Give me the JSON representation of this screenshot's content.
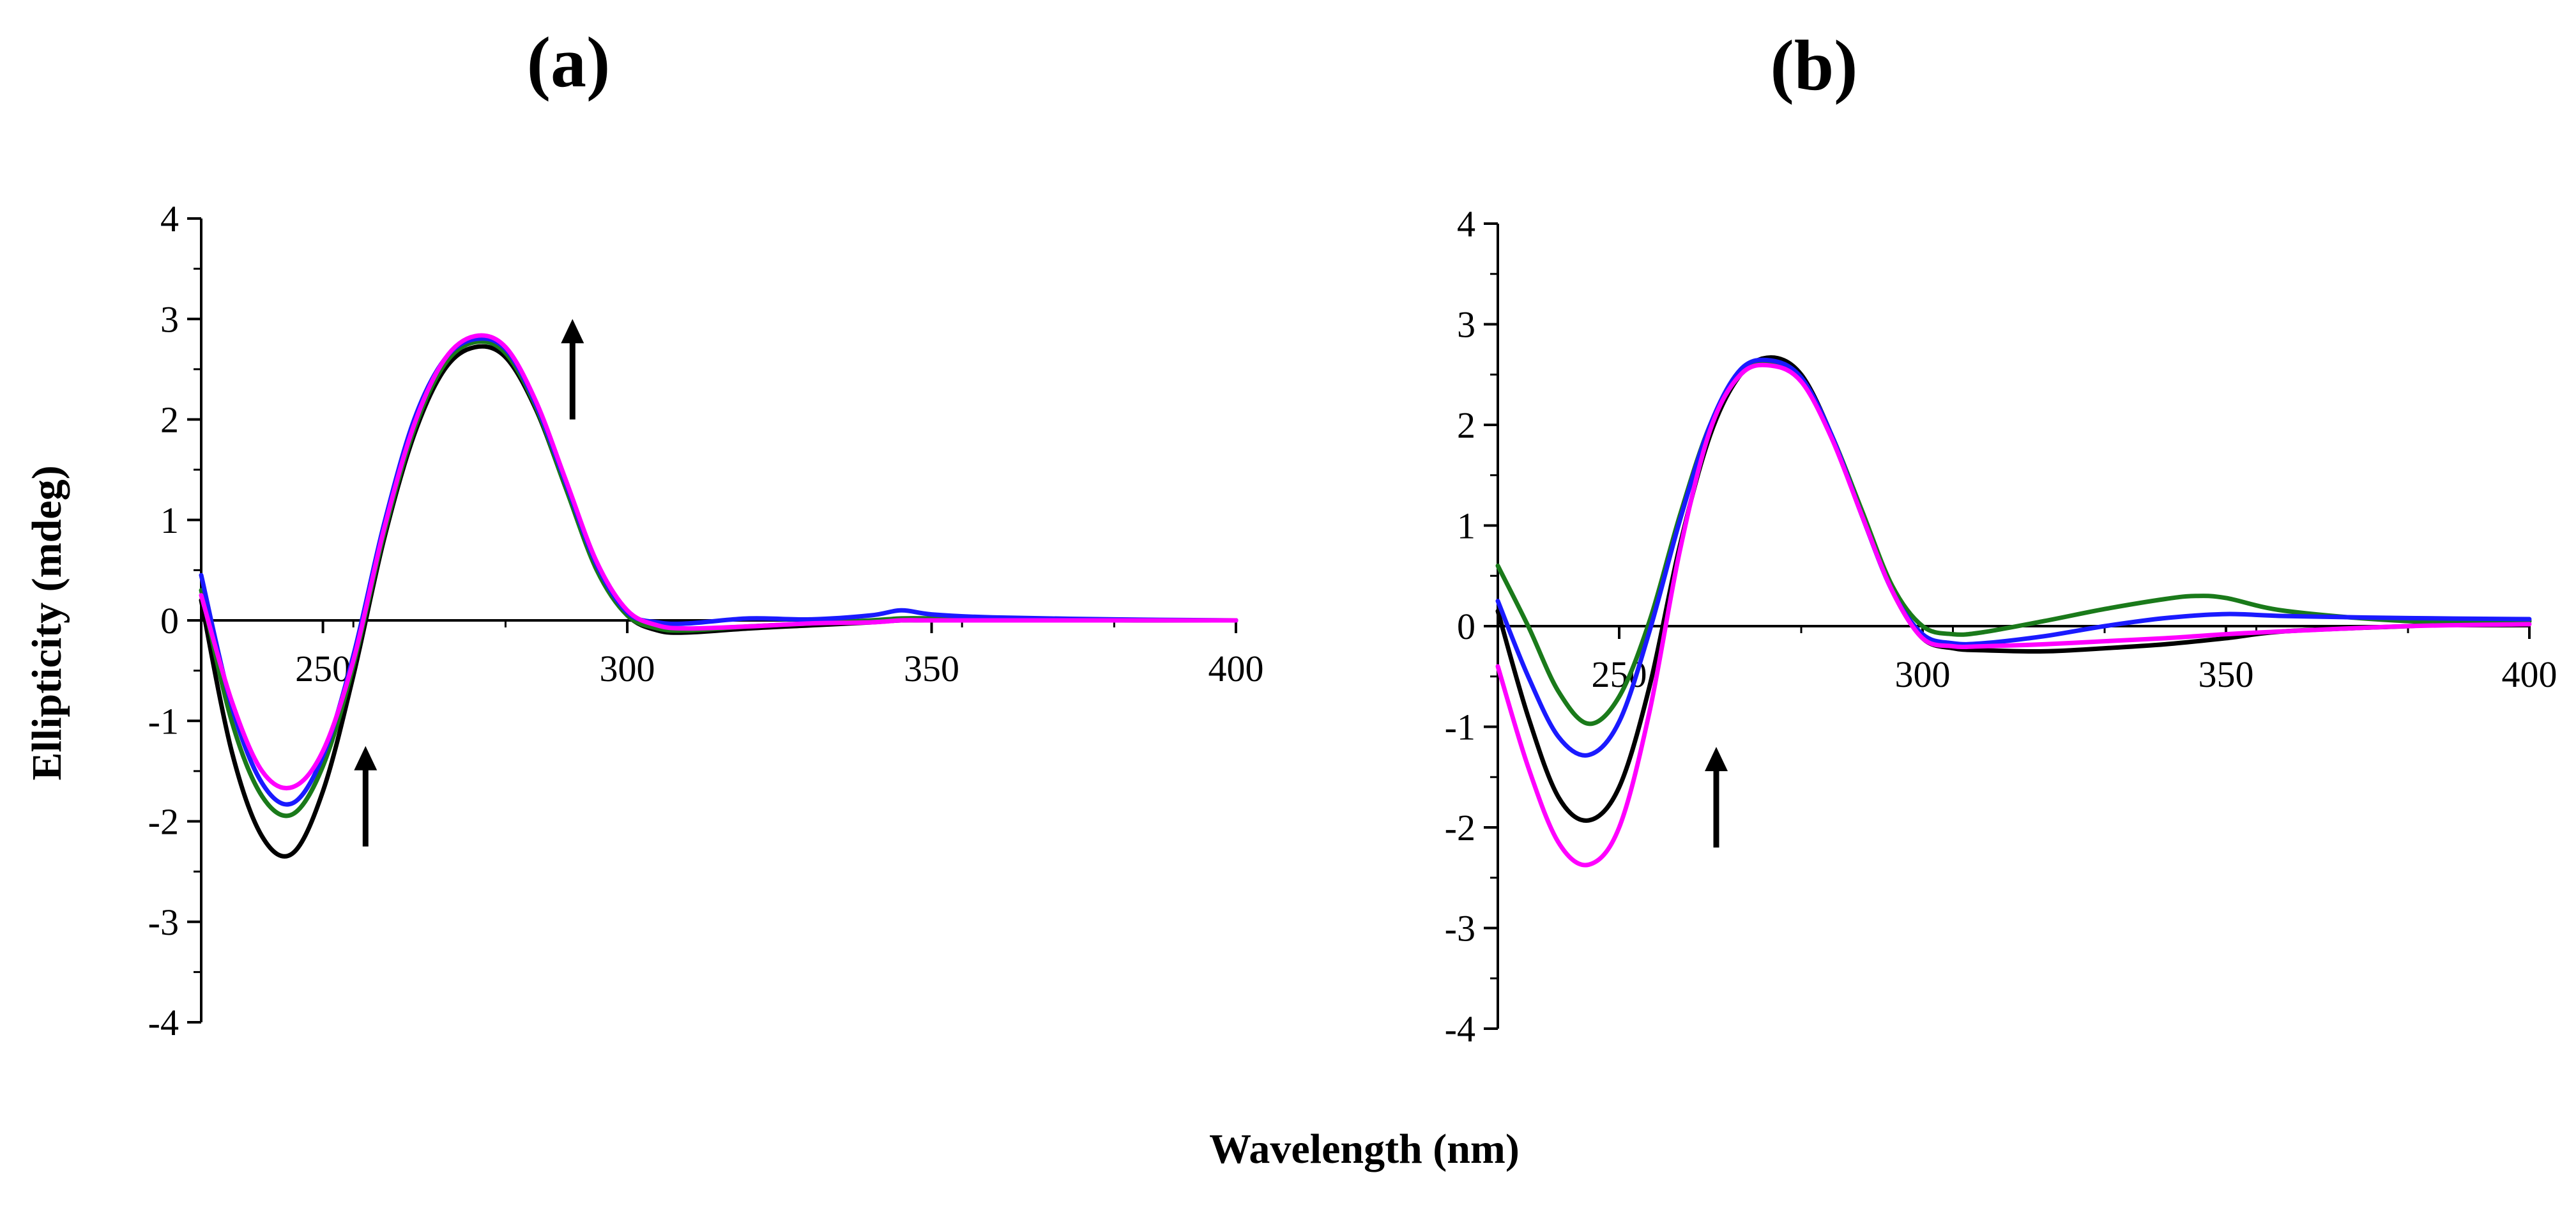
{
  "figure": {
    "xlabel": "Wavelength (nm)",
    "ylabel": "Ellipticity (mdeg)"
  },
  "chart_data": [
    {
      "type": "line",
      "title": "(a)",
      "xlim": [
        230,
        400
      ],
      "ylim": [
        -4,
        4
      ],
      "xticks": [
        250,
        300,
        350,
        400
      ],
      "yticks": [
        4,
        3,
        2,
        1,
        0,
        -1,
        -2,
        -3,
        -4
      ],
      "annotations": [
        {
          "type": "arrow",
          "direction": "up",
          "x": 257,
          "y_from": -2.25,
          "y_to": -1.25
        },
        {
          "type": "arrow",
          "direction": "up",
          "x": 291,
          "y_from": 2.0,
          "y_to": 3.0
        }
      ],
      "series": [
        {
          "color": "#000000",
          "x": [
            230,
            235,
            240,
            245,
            250,
            255,
            260,
            265,
            270,
            275,
            280,
            285,
            290,
            295,
            300,
            305,
            310,
            320,
            330,
            340,
            345,
            350,
            360,
            380,
            400
          ],
          "y": [
            0.2,
            -1.3,
            -2.15,
            -2.32,
            -1.7,
            -0.55,
            0.8,
            1.85,
            2.5,
            2.72,
            2.62,
            2.1,
            1.3,
            0.5,
            0.05,
            -0.1,
            -0.12,
            -0.08,
            -0.05,
            -0.02,
            0.0,
            0.0,
            0.0,
            0.0,
            0.0
          ]
        },
        {
          "color": "#1a7a1a",
          "x": [
            230,
            235,
            240,
            245,
            250,
            255,
            260,
            265,
            270,
            275,
            280,
            285,
            290,
            295,
            300,
            305,
            310,
            320,
            330,
            340,
            345,
            350,
            360,
            380,
            400
          ],
          "y": [
            0.3,
            -1.0,
            -1.75,
            -1.93,
            -1.45,
            -0.45,
            0.85,
            1.9,
            2.55,
            2.77,
            2.66,
            2.12,
            1.3,
            0.5,
            0.05,
            -0.08,
            -0.1,
            -0.06,
            -0.03,
            0.0,
            0.02,
            0.02,
            0.01,
            0.0,
            0.0
          ]
        },
        {
          "color": "#1a1aff",
          "x": [
            230,
            235,
            240,
            245,
            250,
            255,
            260,
            265,
            270,
            275,
            280,
            285,
            290,
            295,
            300,
            305,
            310,
            320,
            330,
            340,
            345,
            350,
            360,
            380,
            400
          ],
          "y": [
            0.45,
            -0.85,
            -1.62,
            -1.82,
            -1.35,
            -0.35,
            0.95,
            2.0,
            2.6,
            2.8,
            2.7,
            2.15,
            1.35,
            0.55,
            0.08,
            -0.02,
            -0.03,
            0.02,
            0.01,
            0.05,
            0.1,
            0.06,
            0.03,
            0.01,
            0.0
          ]
        },
        {
          "color": "#ff00ff",
          "x": [
            230,
            235,
            240,
            245,
            250,
            255,
            260,
            265,
            270,
            275,
            280,
            285,
            290,
            295,
            300,
            305,
            310,
            320,
            330,
            340,
            345,
            350,
            360,
            380,
            400
          ],
          "y": [
            0.25,
            -0.8,
            -1.5,
            -1.66,
            -1.3,
            -0.4,
            0.9,
            1.95,
            2.6,
            2.83,
            2.72,
            2.18,
            1.38,
            0.58,
            0.1,
            -0.05,
            -0.08,
            -0.06,
            -0.03,
            -0.02,
            0.0,
            0.0,
            0.0,
            0.0,
            0.0
          ]
        }
      ]
    },
    {
      "type": "line",
      "title": "(b)",
      "xlim": [
        230,
        400
      ],
      "ylim": [
        -4,
        4
      ],
      "xticks": [
        250,
        300,
        350,
        400
      ],
      "yticks": [
        4,
        3,
        2,
        1,
        0,
        -1,
        -2,
        -3,
        -4
      ],
      "annotations": [
        {
          "type": "arrow",
          "direction": "up",
          "x": 266,
          "y_from": -2.2,
          "y_to": -1.2
        }
      ],
      "series": [
        {
          "color": "#000000",
          "x": [
            230,
            235,
            240,
            245,
            250,
            255,
            260,
            265,
            270,
            275,
            280,
            285,
            290,
            295,
            300,
            305,
            310,
            320,
            330,
            340,
            350,
            360,
            380,
            400
          ],
          "y": [
            0.15,
            -0.9,
            -1.7,
            -1.93,
            -1.6,
            -0.6,
            0.8,
            1.9,
            2.5,
            2.67,
            2.5,
            1.9,
            1.1,
            0.35,
            -0.12,
            -0.22,
            -0.24,
            -0.25,
            -0.22,
            -0.18,
            -0.12,
            -0.05,
            0.0,
            0.05
          ]
        },
        {
          "color": "#1a7a1a",
          "x": [
            230,
            235,
            240,
            245,
            250,
            255,
            260,
            265,
            270,
            275,
            280,
            285,
            290,
            295,
            300,
            305,
            310,
            320,
            330,
            340,
            345,
            350,
            360,
            380,
            400
          ],
          "y": [
            0.6,
            0.0,
            -0.65,
            -0.97,
            -0.7,
            0.05,
            1.1,
            2.0,
            2.5,
            2.62,
            2.45,
            1.9,
            1.15,
            0.4,
            0.0,
            -0.08,
            -0.06,
            0.05,
            0.17,
            0.27,
            0.3,
            0.28,
            0.15,
            0.05,
            0.05
          ]
        },
        {
          "color": "#1a1aff",
          "x": [
            230,
            235,
            240,
            245,
            250,
            255,
            260,
            265,
            270,
            275,
            280,
            285,
            290,
            295,
            300,
            305,
            310,
            320,
            330,
            340,
            350,
            360,
            380,
            400
          ],
          "y": [
            0.25,
            -0.5,
            -1.1,
            -1.28,
            -0.95,
            -0.05,
            1.05,
            2.0,
            2.55,
            2.64,
            2.47,
            1.9,
            1.1,
            0.35,
            -0.08,
            -0.17,
            -0.17,
            -0.1,
            0.0,
            0.08,
            0.12,
            0.1,
            0.08,
            0.07
          ]
        },
        {
          "color": "#ff00ff",
          "x": [
            230,
            235,
            240,
            245,
            250,
            255,
            260,
            265,
            270,
            275,
            280,
            285,
            290,
            295,
            300,
            305,
            310,
            320,
            330,
            340,
            350,
            360,
            380,
            400
          ],
          "y": [
            -0.4,
            -1.4,
            -2.15,
            -2.37,
            -2.0,
            -0.85,
            0.75,
            1.95,
            2.5,
            2.59,
            2.43,
            1.87,
            1.1,
            0.35,
            -0.12,
            -0.2,
            -0.2,
            -0.18,
            -0.15,
            -0.12,
            -0.08,
            -0.05,
            0.0,
            0.02
          ]
        }
      ]
    }
  ]
}
